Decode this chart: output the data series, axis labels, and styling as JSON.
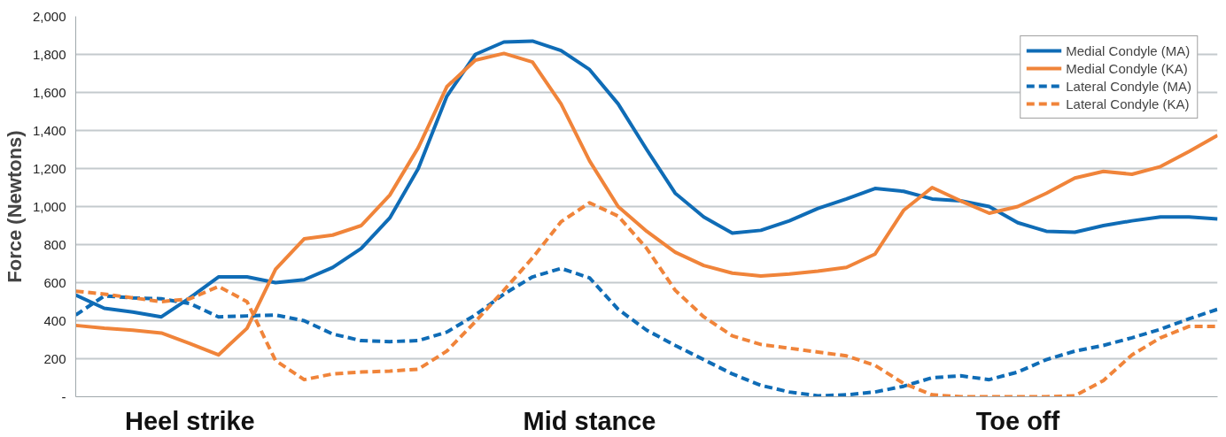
{
  "chart_data": {
    "type": "line",
    "ylabel": "Force (Newtons)",
    "categories": [
      null,
      null,
      null,
      null,
      "Heel strike",
      null,
      null,
      null,
      null,
      null,
      null,
      null,
      null,
      null,
      null,
      null,
      null,
      null,
      "Mid stance",
      null,
      null,
      null,
      null,
      null,
      null,
      null,
      null,
      null,
      null,
      null,
      null,
      null,
      null,
      "Toe off",
      null,
      null,
      null,
      null,
      null,
      null,
      null
    ],
    "ylim": [
      0,
      2000
    ],
    "yticks": [
      {
        "value": 0,
        "label": "-"
      },
      200,
      400,
      600,
      800,
      {
        "value": 1000,
        "label": "1,000"
      },
      {
        "value": 1200,
        "label": "1,200"
      },
      {
        "value": 1400,
        "label": "1,400"
      },
      {
        "value": 1600,
        "label": "1,600"
      },
      {
        "value": 1800,
        "label": "1,800"
      },
      {
        "value": 2000,
        "label": "2,000"
      }
    ],
    "grid": "y",
    "legend": "top right",
    "marker": "none",
    "series": [
      {
        "name": "Medial Condyle (MA)",
        "color": "#0f6cb6",
        "line_style": "solid",
        "values": [
          535,
          465,
          445,
          420,
          520,
          630,
          630,
          600,
          615,
          680,
          780,
          940,
          1200,
          1580,
          1800,
          1865,
          1870,
          1820,
          1720,
          1540,
          1300,
          1070,
          945,
          860,
          875,
          925,
          990,
          1040,
          1095,
          1080,
          1040,
          1030,
          1000,
          915,
          870,
          865,
          900,
          925,
          945,
          945,
          935
        ]
      },
      {
        "name": "Medial Condyle (KA)",
        "color": "#f0843a",
        "line_style": "solid",
        "values": [
          375,
          360,
          350,
          335,
          280,
          220,
          360,
          670,
          830,
          850,
          900,
          1060,
          1310,
          1630,
          1770,
          1805,
          1760,
          1540,
          1240,
          1000,
          870,
          760,
          690,
          650,
          635,
          645,
          660,
          680,
          750,
          980,
          1100,
          1030,
          965,
          1000,
          1070,
          1150,
          1185,
          1170,
          1210,
          1290,
          1375
        ]
      },
      {
        "name": "Lateral Condyle (MA)",
        "color": "#0f6cb6",
        "line_style": "dashed",
        "values": [
          430,
          530,
          520,
          515,
          490,
          420,
          425,
          430,
          400,
          330,
          295,
          290,
          295,
          340,
          430,
          540,
          630,
          675,
          625,
          460,
          350,
          270,
          195,
          120,
          60,
          25,
          5,
          10,
          25,
          55,
          100,
          110,
          90,
          130,
          195,
          240,
          270,
          310,
          355,
          410,
          460
        ]
      },
      {
        "name": "Lateral Condyle (KA)",
        "color": "#f0843a",
        "line_style": "dashed",
        "values": [
          555,
          540,
          520,
          500,
          515,
          580,
          500,
          190,
          90,
          120,
          130,
          135,
          145,
          240,
          395,
          560,
          730,
          920,
          1020,
          950,
          780,
          560,
          420,
          320,
          275,
          255,
          235,
          215,
          165,
          70,
          10,
          0,
          0,
          0,
          0,
          5,
          85,
          220,
          310,
          370,
          370
        ]
      }
    ]
  }
}
